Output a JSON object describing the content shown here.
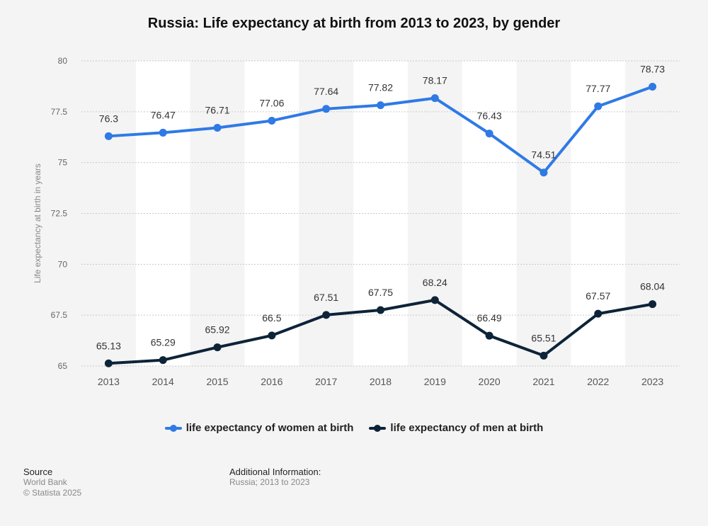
{
  "chart_data": {
    "type": "line",
    "title": "Russia: Life expectancy at birth from 2013 to 2023, by gender",
    "ylabel": "Life expectancy at birth in years",
    "xlabel": "",
    "ylim": [
      65,
      80
    ],
    "yticks": [
      65,
      67.5,
      70,
      72.5,
      75,
      77.5,
      80
    ],
    "ytick_labels": [
      "65",
      "67.5",
      "70",
      "72.5",
      "75",
      "77.5",
      "80"
    ],
    "categories": [
      "2013",
      "2014",
      "2015",
      "2016",
      "2017",
      "2018",
      "2019",
      "2020",
      "2021",
      "2022",
      "2023"
    ],
    "series": [
      {
        "name": "life expectancy of women at birth",
        "color": "#2f7ae5",
        "values": [
          76.3,
          76.47,
          76.71,
          77.06,
          77.64,
          77.82,
          78.17,
          76.43,
          74.51,
          77.77,
          78.73
        ],
        "labels": [
          "76.3",
          "76.47",
          "76.71",
          "77.06",
          "77.64",
          "77.82",
          "78.17",
          "76.43",
          "74.51",
          "77.77",
          "78.73"
        ]
      },
      {
        "name": "life expectancy of men at birth",
        "color": "#0d2338",
        "values": [
          65.13,
          65.29,
          65.92,
          66.5,
          67.51,
          67.75,
          68.24,
          66.49,
          65.51,
          67.57,
          68.04
        ],
        "labels": [
          "65.13",
          "65.29",
          "65.92",
          "66.5",
          "67.51",
          "67.75",
          "68.24",
          "66.49",
          "65.51",
          "67.57",
          "68.04"
        ]
      }
    ],
    "grid": true,
    "legend_position": "bottom-center"
  },
  "footer": {
    "source_heading": "Source",
    "source_lines": [
      "World Bank",
      "© Statista 2025"
    ],
    "additional_heading": "Additional Information:",
    "additional_text": "Russia; 2013 to 2023"
  }
}
